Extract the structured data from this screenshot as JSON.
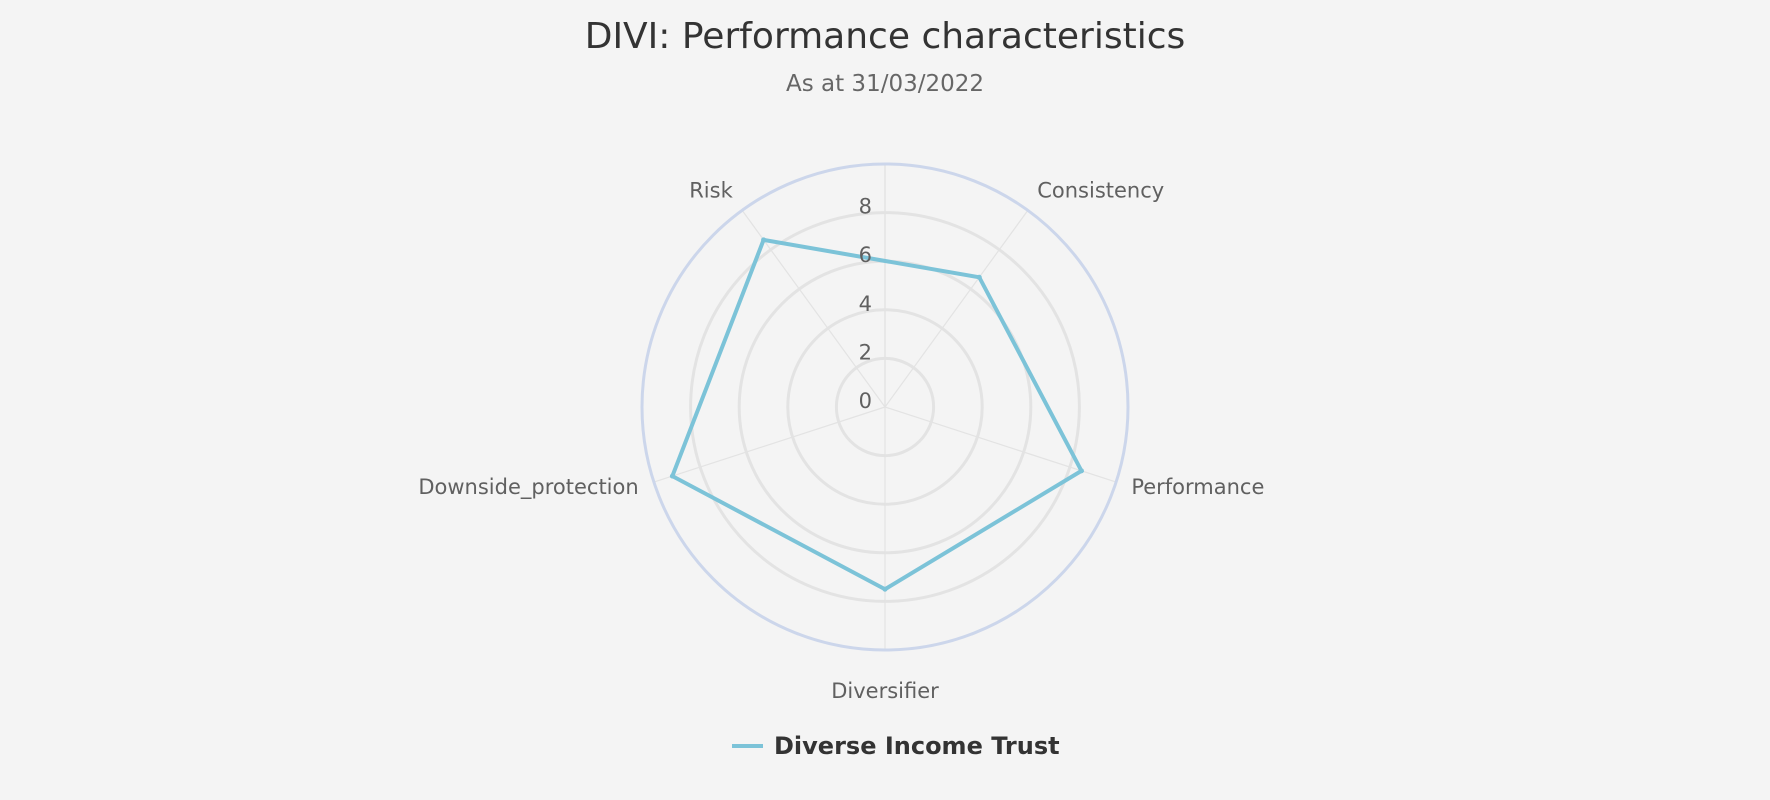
{
  "chart_data": {
    "type": "radar",
    "title": "DIVI: Performance characteristics",
    "subtitle": "As at 31/03/2022",
    "categories": [
      "Consistency",
      "Performance",
      "Diversifier",
      "Downside_protection",
      "Risk"
    ],
    "axis_ticks": [
      "0",
      "2",
      "4",
      "6",
      "8"
    ],
    "rlim": [
      0,
      10
    ],
    "grid": true,
    "legend_position": "bottom",
    "series": [
      {
        "name": "Diverse Income Trust",
        "color": "#7cc3d8",
        "values": {
          "Risk": 8.5,
          "Consistency": 6.6,
          "Performance": 8.5,
          "Diversifier": 7.5,
          "Downside_protection": 9.2
        }
      }
    ],
    "colors": {
      "background": "#f4f4f4",
      "grid": "#e3e3e3",
      "outer_ring": "#ccd6eb",
      "series_line": "#7cc3d8"
    }
  }
}
